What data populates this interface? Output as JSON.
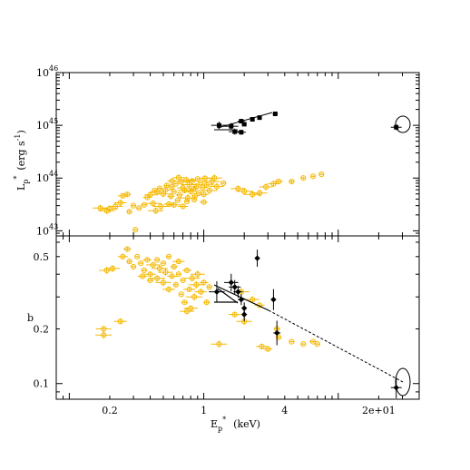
{
  "colors": {
    "sample": "#F5B800",
    "highlight": "#000000"
  },
  "chart_data": [
    {
      "type": "scatter",
      "panel": "top",
      "title": "",
      "xlabel": "",
      "ylabel": "L_p* (erg s^-1)",
      "ylabel_main": "L",
      "ylabel_sub": "p",
      "ylabel_sup": "*",
      "ylabel_units": "(erg  s",
      "ylabel_units_sup": "-1",
      "ylabel_units_close": ")",
      "xscale": "log",
      "yscale": "log",
      "xlim": [
        0.08,
        40
      ],
      "ylim": [
        8e+42,
        1e+46
      ],
      "y_ticks": [
        {
          "value": 1e+43,
          "base": "10",
          "exp": "43"
        },
        {
          "value": 1e+44,
          "base": "10",
          "exp": "44"
        },
        {
          "value": 1e+45,
          "base": "10",
          "exp": "45"
        },
        {
          "value": 1e+46,
          "base": "10",
          "exp": "46"
        }
      ],
      "series": [
        {
          "color": "#F5B800",
          "marker": "open-circle",
          "points": [
            [
              0.17,
              2.7e+43
            ],
            [
              0.19,
              2.4e+43
            ],
            [
              0.2,
              2.6e+43
            ],
            [
              0.22,
              2.9e+43
            ],
            [
              0.24,
              3.4e+43
            ],
            [
              0.25,
              4.6e+43
            ],
            [
              0.27,
              4.9e+43
            ],
            [
              0.28,
              2.3e+43
            ],
            [
              0.3,
              3e+43
            ],
            [
              0.31,
              1.05e+43
            ],
            [
              0.33,
              2.7e+43
            ],
            [
              0.36,
              3.1e+43
            ],
            [
              0.38,
              4.3e+43
            ],
            [
              0.4,
              4.8e+43
            ],
            [
              0.42,
              3.3e+43
            ],
            [
              0.44,
              2.4e+43
            ],
            [
              0.45,
              5.4e+43
            ],
            [
              0.48,
              2.9e+43
            ],
            [
              0.5,
              5e+43
            ],
            [
              0.52,
              6e+43
            ],
            [
              0.55,
              3.2e+43
            ],
            [
              0.57,
              4.5e+43
            ],
            [
              0.58,
              6.8e+43
            ],
            [
              0.6,
              5.5e+43
            ],
            [
              0.62,
              7.8e+43
            ],
            [
              0.64,
              3.8e+43
            ],
            [
              0.66,
              4.8e+43
            ],
            [
              0.68,
              8.5e+43
            ],
            [
              0.7,
              6.5e+43
            ],
            [
              0.72,
              5.8e+43
            ],
            [
              0.74,
              9.2e+43
            ],
            [
              0.76,
              4.2e+43
            ],
            [
              0.78,
              7.5e+43
            ],
            [
              0.8,
              5.6e+43
            ],
            [
              0.82,
              8.8e+43
            ],
            [
              0.84,
              6.2e+43
            ],
            [
              0.86,
              4.6e+43
            ],
            [
              0.88,
              7e+43
            ],
            [
              0.9,
              9.6e+43
            ],
            [
              0.92,
              5.2e+43
            ],
            [
              0.95,
              8.2e+43
            ],
            [
              0.98,
              6.6e+43
            ],
            [
              1.0,
              4.9e+43
            ],
            [
              1.02,
              9.9e+43
            ],
            [
              1.05,
              7.4e+43
            ],
            [
              1.1,
              5.8e+43
            ],
            [
              1.15,
              8.6e+43
            ],
            [
              1.2,
              1e+44
            ],
            [
              1.25,
              6.9e+43
            ],
            [
              0.65,
              1.02e+44
            ],
            [
              0.58,
              8.8e+43
            ],
            [
              0.53,
              7.2e+43
            ],
            [
              0.47,
              6.4e+43
            ],
            [
              0.43,
              5.8e+43
            ],
            [
              0.75,
              3.6e+43
            ],
            [
              0.85,
              3.9e+43
            ],
            [
              1.0,
              3.5e+43
            ],
            [
              0.7,
              2.9e+43
            ],
            [
              0.6,
              3.1e+43
            ],
            [
              1.8,
              6.3e+43
            ],
            [
              2.0,
              5.6e+43
            ],
            [
              2.3,
              4.9e+43
            ],
            [
              2.6,
              5.2e+43
            ],
            [
              2.9,
              6.8e+43
            ],
            [
              3.3,
              7.8e+43
            ],
            [
              3.6,
              8.6e+43
            ],
            [
              4.5,
              8.6e+43
            ],
            [
              5.5,
              1e+44
            ],
            [
              6.5,
              1.08e+44
            ],
            [
              7.5,
              1.18e+44
            ],
            [
              1.4,
              8e+43
            ]
          ]
        },
        {
          "color": "#000000",
          "marker": "filled-square",
          "points": [
            [
              1.3,
              1e+45
            ],
            [
              1.6,
              9.6e+44
            ],
            [
              1.7,
              7.6e+44
            ],
            [
              1.9,
              7.4e+44
            ],
            [
              1.9,
              1.2e+45
            ],
            [
              2.0,
              1.05e+45
            ],
            [
              2.3,
              1.3e+45
            ],
            [
              2.6,
              1.4e+45
            ],
            [
              3.4,
              1.65e+45
            ]
          ]
        },
        {
          "color": "#000000",
          "marker": "filled-square",
          "points": [
            [
              27,
              9.2e+44
            ]
          ]
        }
      ]
    },
    {
      "type": "scatter",
      "panel": "bottom",
      "title": "",
      "xlabel": "E_p* (keV)",
      "xlabel_main": "E",
      "xlabel_sub": "p",
      "xlabel_sup": "*",
      "xlabel_units": "(keV)",
      "ylabel": "b",
      "xscale": "log",
      "yscale": "log",
      "xlim": [
        0.08,
        40
      ],
      "ylim": [
        0.082,
        0.65
      ],
      "x_ticks": [
        {
          "value": 0.2,
          "label": "0.2"
        },
        {
          "value": 1,
          "label": "1"
        },
        {
          "value": 4,
          "label": "4"
        },
        {
          "value": 20,
          "label": "2e+01"
        }
      ],
      "y_ticks": [
        {
          "value": 0.1,
          "label": "0.1"
        },
        {
          "value": 0.2,
          "label": "0.2"
        },
        {
          "value": 0.5,
          "label": "0.5"
        }
      ],
      "series": [
        {
          "color": "#F5B800",
          "marker": "open-circle",
          "points": [
            [
              0.18,
              0.2
            ],
            [
              0.18,
              0.185
            ],
            [
              0.19,
              0.42
            ],
            [
              0.21,
              0.43
            ],
            [
              0.24,
              0.22
            ],
            [
              0.25,
              0.5
            ],
            [
              0.27,
              0.55
            ],
            [
              0.28,
              0.47
            ],
            [
              0.3,
              0.44
            ],
            [
              0.32,
              0.5
            ],
            [
              0.34,
              0.46
            ],
            [
              0.36,
              0.42
            ],
            [
              0.38,
              0.48
            ],
            [
              0.4,
              0.4
            ],
            [
              0.42,
              0.45
            ],
            [
              0.45,
              0.38
            ],
            [
              0.47,
              0.43
            ],
            [
              0.5,
              0.36
            ],
            [
              0.52,
              0.41
            ],
            [
              0.55,
              0.33
            ],
            [
              0.58,
              0.39
            ],
            [
              0.6,
              0.44
            ],
            [
              0.62,
              0.35
            ],
            [
              0.65,
              0.4
            ],
            [
              0.68,
              0.31
            ],
            [
              0.7,
              0.37
            ],
            [
              0.72,
              0.28
            ],
            [
              0.75,
              0.42
            ],
            [
              0.78,
              0.33
            ],
            [
              0.8,
              0.26
            ],
            [
              0.82,
              0.38
            ],
            [
              0.85,
              0.3
            ],
            [
              0.88,
              0.35
            ],
            [
              0.9,
              0.4
            ],
            [
              0.95,
              0.32
            ],
            [
              1.0,
              0.36
            ],
            [
              1.05,
              0.28
            ],
            [
              1.1,
              0.34
            ],
            [
              0.55,
              0.5
            ],
            [
              0.5,
              0.46
            ],
            [
              0.45,
              0.48
            ],
            [
              0.4,
              0.37
            ],
            [
              0.35,
              0.39
            ],
            [
              0.65,
              0.47
            ],
            [
              0.75,
              0.25
            ],
            [
              1.3,
              0.165
            ],
            [
              1.9,
              0.32
            ],
            [
              2.0,
              0.22
            ],
            [
              2.3,
              0.29
            ],
            [
              2.7,
              0.16
            ],
            [
              3.0,
              0.155
            ],
            [
              3.5,
              0.2
            ],
            [
              3.6,
              0.18
            ],
            [
              4.5,
              0.17
            ],
            [
              5.5,
              0.165
            ],
            [
              7.0,
              0.165
            ],
            [
              6.5,
              0.17
            ],
            [
              2.6,
              0.27
            ],
            [
              1.7,
              0.24
            ]
          ]
        },
        {
          "color": "#000000",
          "marker": "filled-diamond",
          "points": [
            [
              1.25,
              0.32
            ],
            [
              1.6,
              0.36
            ],
            [
              1.7,
              0.34
            ],
            [
              1.8,
              0.32
            ],
            [
              1.9,
              0.29
            ],
            [
              2.0,
              0.26
            ],
            [
              2.0,
              0.24
            ],
            [
              2.5,
              0.49
            ],
            [
              3.3,
              0.29
            ],
            [
              3.5,
              0.19
            ]
          ]
        },
        {
          "color": "#000000",
          "marker": "filled-diamond",
          "points": [
            [
              27,
              0.095
            ]
          ]
        }
      ]
    }
  ]
}
